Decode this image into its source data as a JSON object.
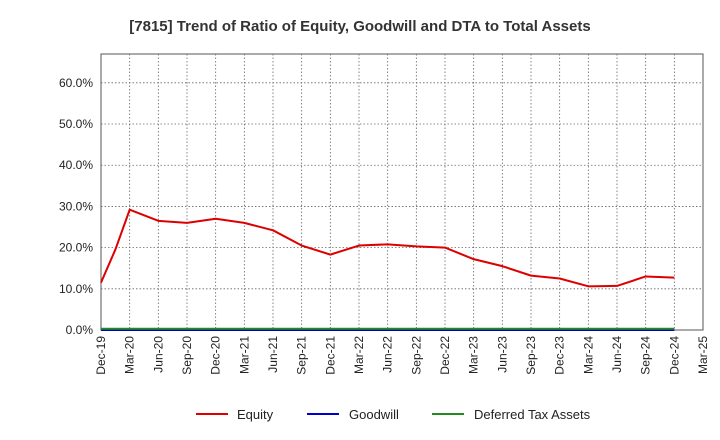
{
  "chart_data": {
    "type": "line",
    "title": "[7815]  Trend of Ratio of Equity, Goodwill and DTA to Total Assets",
    "xlabel": "",
    "ylabel": "",
    "ylim": [
      0,
      67
    ],
    "yticks": [
      0,
      10,
      20,
      30,
      40,
      50,
      60
    ],
    "ytick_labels": [
      "0.0%",
      "10.0%",
      "20.0%",
      "30.0%",
      "40.0%",
      "50.0%",
      "60.0%"
    ],
    "xtick_labels": [
      "Dec-19",
      "Mar-20",
      "Jun-20",
      "Sep-20",
      "Dec-20",
      "Mar-21",
      "Jun-21",
      "Sep-21",
      "Dec-21",
      "Mar-22",
      "Jun-22",
      "Sep-22",
      "Dec-22",
      "Mar-23",
      "Jun-23",
      "Sep-23",
      "Dec-23",
      "Mar-24",
      "Jun-24",
      "Sep-24",
      "Dec-24",
      "Mar-25"
    ],
    "grid": true,
    "legend_position": "bottom",
    "series": [
      {
        "name": "Equity",
        "color": "#dd0000",
        "x": [
          0,
          0.5,
          1,
          2,
          3,
          4,
          5,
          6,
          7,
          8,
          9,
          10,
          11,
          12,
          13,
          14,
          15,
          16,
          17,
          18,
          19,
          20
        ],
        "values": [
          11.5,
          19.5,
          29.2,
          26.5,
          26.0,
          27.0,
          26.0,
          24.2,
          20.5,
          18.3,
          20.5,
          20.8,
          20.3,
          20.0,
          17.2,
          15.5,
          13.2,
          12.5,
          10.6,
          10.7,
          13.0,
          12.7
        ]
      },
      {
        "name": "Goodwill",
        "color": "#0000cc",
        "x": [
          0,
          20
        ],
        "values": [
          0.0,
          0.0
        ]
      },
      {
        "name": "Deferred Tax Assets",
        "color": "#228b22",
        "x": [
          0,
          1,
          2,
          3,
          4,
          5,
          6,
          7,
          8,
          9,
          10,
          11,
          12,
          13,
          14,
          15,
          16,
          17,
          18,
          19,
          20
        ],
        "values": [
          0.3,
          0.3,
          0.3,
          0.3,
          0.3,
          0.3,
          0.3,
          0.3,
          0.3,
          0.3,
          0.3,
          0.3,
          0.3,
          0.3,
          0.3,
          0.3,
          0.3,
          0.3,
          0.3,
          0.3,
          0.3
        ]
      }
    ]
  }
}
